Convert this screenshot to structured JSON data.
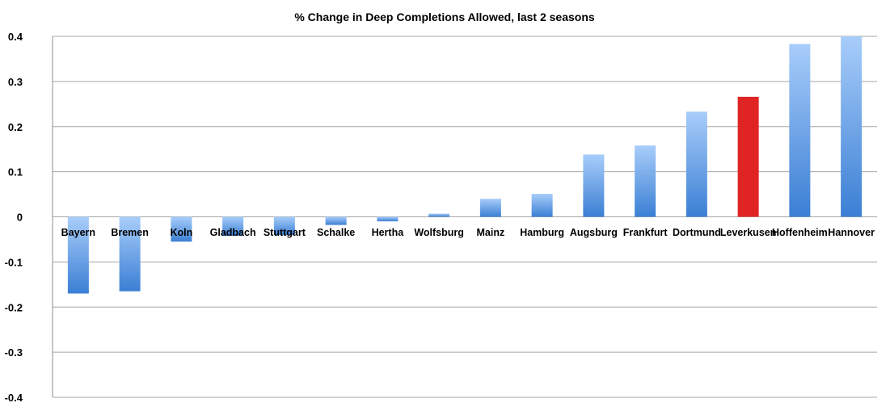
{
  "chart_data": {
    "type": "bar",
    "title": "% Change in Deep Completions Allowed, last 2 seasons",
    "xlabel": "",
    "ylabel": "",
    "ylim": [
      -0.4,
      0.4
    ],
    "yticks": [
      "0.4",
      "0.3",
      "0.2",
      "0.1",
      "0",
      "-0.1",
      "-0.2",
      "-0.3",
      "-0.4"
    ],
    "grid": true,
    "legend": "none",
    "categories": [
      "Bayern",
      "Bremen",
      "Koln",
      "Gladbach",
      "Stuttgart",
      "Schalke",
      "Hertha",
      "Wolfsburg",
      "Mainz",
      "Hamburg",
      "Augsburg",
      "Frankfurt",
      "Dortmund",
      "Leverkusen",
      "Hoffenheim",
      "Hannover"
    ],
    "values": [
      -0.17,
      -0.165,
      -0.055,
      -0.042,
      -0.04,
      -0.018,
      -0.01,
      0.007,
      0.04,
      0.051,
      0.138,
      0.158,
      0.233,
      0.266,
      0.383,
      0.4
    ],
    "highlight_index": 13,
    "colors": {
      "bar_top": "#a8cdfa",
      "bar_bottom": "#3b7fd4",
      "highlight": "#e02424",
      "grid": "#a6a6a6",
      "axis": "#8c8c8c"
    }
  }
}
